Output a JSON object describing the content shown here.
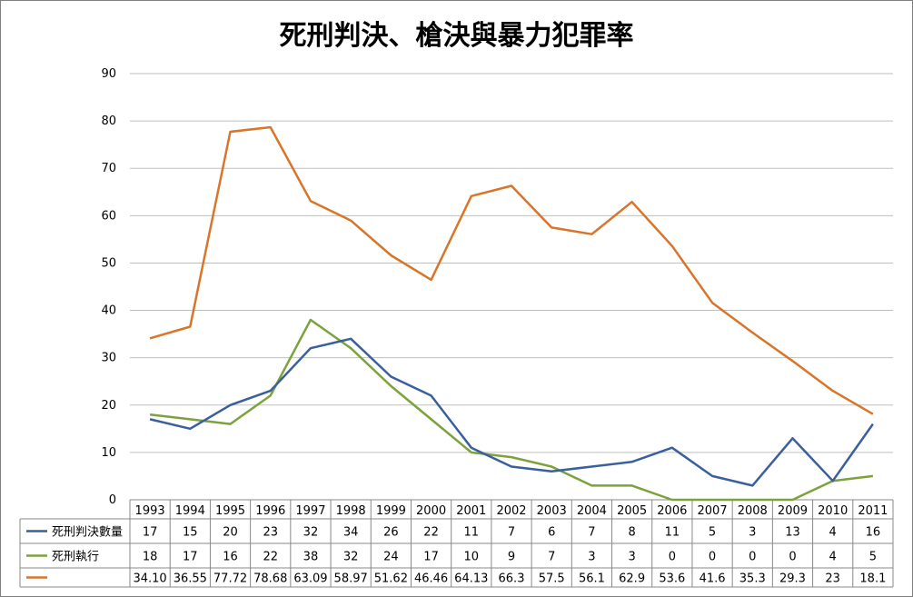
{
  "chart_data": {
    "type": "line",
    "title": "死刑判決、槍決與暴力犯罪率",
    "ylim": [
      0,
      90
    ],
    "yticks": [
      0,
      10,
      20,
      30,
      40,
      50,
      60,
      70,
      80,
      90
    ],
    "grid": true,
    "legend": "table-bottom",
    "categories": [
      "1993",
      "1994",
      "1995",
      "1996",
      "1997",
      "1998",
      "1999",
      "2000",
      "2001",
      "2002",
      "2003",
      "2004",
      "2005",
      "2006",
      "2007",
      "2008",
      "2009",
      "2010",
      "2011"
    ],
    "series": [
      {
        "name": "死刑判決數量",
        "color": "#3a5f9d",
        "values": [
          17,
          15,
          20,
          23,
          32,
          34,
          26,
          22,
          11,
          7,
          6,
          7,
          8,
          11,
          5,
          3,
          13,
          4,
          16
        ],
        "labels": [
          "17",
          "15",
          "20",
          "23",
          "32",
          "34",
          "26",
          "22",
          "11",
          "7",
          "6",
          "7",
          "8",
          "11",
          "5",
          "3",
          "13",
          "4",
          "16"
        ]
      },
      {
        "name": "死刑執行",
        "color": "#7ba23b",
        "values": [
          18,
          17,
          16,
          22,
          38,
          32,
          24,
          17,
          10,
          9,
          7,
          3,
          3,
          0,
          0,
          0,
          0,
          4,
          5
        ],
        "labels": [
          "18",
          "17",
          "16",
          "22",
          "38",
          "32",
          "24",
          "17",
          "10",
          "9",
          "7",
          "3",
          "3",
          "0",
          "0",
          "0",
          "0",
          "4",
          "5"
        ]
      },
      {
        "name": "",
        "color": "#d97529",
        "values": [
          34.1,
          36.55,
          77.72,
          78.68,
          63.09,
          58.97,
          51.62,
          46.46,
          64.13,
          66.3,
          57.5,
          56.1,
          62.9,
          53.6,
          41.6,
          35.3,
          29.3,
          23,
          18.1
        ],
        "labels": [
          "34.10",
          "36.55",
          "77.72",
          "78.68",
          "63.09",
          "58.97",
          "51.62",
          "46.46",
          "64.13",
          "66.3",
          "57.5",
          "56.1",
          "62.9",
          "53.6",
          "41.6",
          "35.3",
          "29.3",
          "23",
          "18.1"
        ]
      }
    ]
  }
}
